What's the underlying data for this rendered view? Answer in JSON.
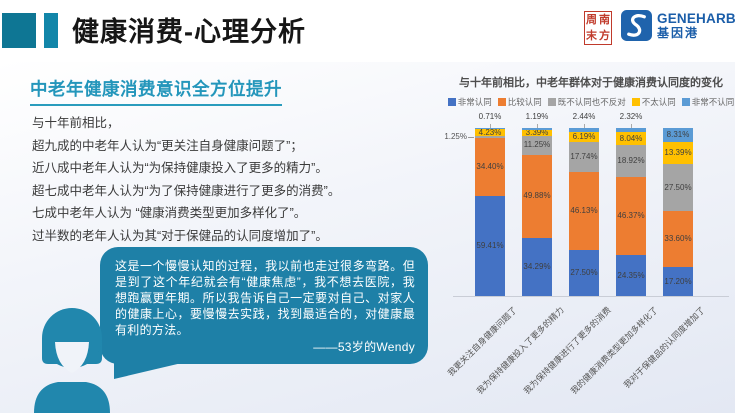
{
  "header": {
    "title": "健康消费-心理分析",
    "seal": {
      "chars": "周南末方"
    },
    "brand": {
      "name": "GENEHARBOR",
      "cn": "基因港"
    }
  },
  "left": {
    "heading": "中老年健康消费意识全方位提升",
    "lines": [
      "与十年前相比，",
      "超九成的中老年人认为“更关注自身健康问题了”；",
      "近八成中老年人认为“为保持健康投入了更多的精力”。",
      "超七成中老年人认为“为了保持健康进行了更多的消费”。",
      "七成中老年人认为 “健康消费类型更加多样化了”。",
      "过半数的老年人认为其“对于保健品的认同度增加了”。"
    ],
    "quote": {
      "text": "这是一个慢慢认知的过程，我以前也走过很多弯路。但是到了这个年纪就会有“健康焦虑”，我不想去医院，我想跑赢更年期。所以我告诉自己一定要对自己、对家人的健康上心，要慢慢去实践，找到最适合的，对健康最有利的方法。",
      "attribution": "——53岁的Wendy"
    }
  },
  "chart_data": {
    "type": "bar",
    "stacked": true,
    "title": "与十年前相比，中老年群体对于健康消费认同度的变化",
    "unit": "%",
    "ylim": [
      0,
      100
    ],
    "legend_position": "top",
    "grid": false,
    "categories": [
      "我更关注自身健康问题了",
      "我为保持健康投入了更多的精力",
      "我为保持健康进行了更多的消费",
      "我的健康消费类型更加多样化了",
      "我对于保健品的认同度增加了"
    ],
    "series": [
      {
        "name": "非常认同",
        "color": "#4472C4",
        "values": [
          59.41,
          34.29,
          27.5,
          24.35,
          17.2
        ]
      },
      {
        "name": "比较认同",
        "color": "#ED7D31",
        "values": [
          34.4,
          49.88,
          46.13,
          46.37,
          33.6
        ]
      },
      {
        "name": "既不认同也不反对",
        "color": "#A5A5A5",
        "values": [
          1.25,
          11.25,
          17.74,
          18.92,
          27.5
        ]
      },
      {
        "name": "不太认同",
        "color": "#FFC000",
        "values": [
          4.23,
          3.39,
          6.19,
          8.04,
          13.39
        ]
      },
      {
        "name": "非常不认同",
        "color": "#5B9BD5",
        "values": [
          0.71,
          1.19,
          2.44,
          2.32,
          8.31
        ]
      }
    ]
  },
  "colors": {
    "accent_teal": "#1286a9",
    "accent_teal_dark": "#0e7694",
    "heading_teal": "#2496bb",
    "bubble_teal": "#1e80a7",
    "brand_blue": "#1b5ea9",
    "seal_red": "#c03a2b"
  }
}
